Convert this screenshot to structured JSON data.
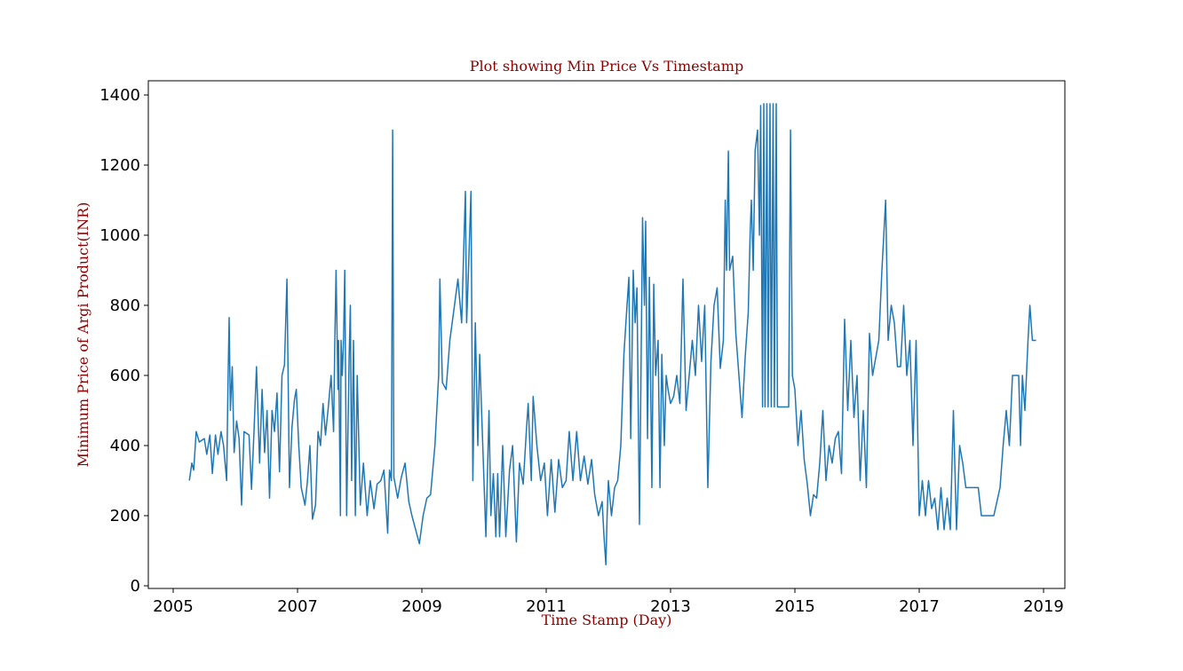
{
  "chart_data": {
    "type": "line",
    "title": "Plot showing Min Price Vs Timestamp",
    "x_label": "Time Stamp (Day)",
    "y_label": "Minimum Price of Argi Product(INR)",
    "xlim": [
      2004.6,
      2019.343
    ],
    "ylim": [
      -7.6,
      1440.5
    ],
    "xticks": [
      2005,
      2007,
      2009,
      2011,
      2013,
      2015,
      2017,
      2019
    ],
    "yticks": [
      0,
      200,
      400,
      600,
      800,
      1000,
      1200,
      1400
    ],
    "grid": false,
    "x": [
      2005.26,
      2005.3,
      2005.33,
      2005.37,
      2005.42,
      2005.5,
      2005.54,
      2005.59,
      2005.63,
      2005.68,
      2005.72,
      2005.77,
      2005.81,
      2005.86,
      2005.88,
      2005.9,
      2005.92,
      2005.95,
      2005.98,
      2006.02,
      2006.06,
      2006.1,
      2006.14,
      2006.22,
      2006.26,
      2006.3,
      2006.34,
      2006.39,
      2006.43,
      2006.47,
      2006.51,
      2006.55,
      2006.59,
      2006.63,
      2006.67,
      2006.71,
      2006.75,
      2006.79,
      2006.83,
      2006.87,
      2006.91,
      2006.95,
      2006.98,
      2007.02,
      2007.06,
      2007.12,
      2007.16,
      2007.2,
      2007.24,
      2007.29,
      2007.33,
      2007.37,
      2007.41,
      2007.45,
      2007.49,
      2007.54,
      2007.58,
      2007.6,
      2007.62,
      2007.65,
      2007.66,
      2007.69,
      2007.7,
      2007.72,
      2007.74,
      2007.76,
      2007.79,
      2007.83,
      2007.85,
      2007.87,
      2007.9,
      2007.93,
      2007.96,
      2008.01,
      2008.06,
      2008.12,
      2008.17,
      2008.23,
      2008.28,
      2008.34,
      2008.39,
      2008.45,
      2008.48,
      2008.51,
      2008.53,
      2008.55,
      2008.61,
      2008.67,
      2008.73,
      2008.79,
      2008.84,
      2008.9,
      2008.96,
      2009.02,
      2009.08,
      2009.14,
      2009.21,
      2009.27,
      2009.29,
      2009.33,
      2009.39,
      2009.45,
      2009.51,
      2009.58,
      2009.64,
      2009.7,
      2009.72,
      2009.75,
      2009.79,
      2009.82,
      2009.86,
      2009.9,
      2009.93,
      2009.97,
      2010.03,
      2010.08,
      2010.11,
      2010.15,
      2010.19,
      2010.22,
      2010.25,
      2010.3,
      2010.35,
      2010.41,
      2010.46,
      2010.52,
      2010.57,
      2010.63,
      2010.68,
      2010.71,
      2010.76,
      2010.79,
      2010.85,
      2010.91,
      2010.97,
      2011.02,
      2011.08,
      2011.14,
      2011.2,
      2011.26,
      2011.32,
      2011.37,
      2011.43,
      2011.49,
      2011.55,
      2011.61,
      2011.67,
      2011.73,
      2011.78,
      2011.84,
      2011.9,
      2011.93,
      2011.96,
      2011.98,
      2012.0,
      2012.05,
      2012.1,
      2012.15,
      2012.2,
      2012.25,
      2012.3,
      2012.33,
      2012.36,
      2012.4,
      2012.43,
      2012.46,
      2012.5,
      2012.55,
      2012.58,
      2012.6,
      2012.63,
      2012.66,
      2012.7,
      2012.73,
      2012.76,
      2012.8,
      2012.83,
      2012.86,
      2012.9,
      2012.93,
      2012.96,
      2013.0,
      2013.05,
      2013.1,
      2013.15,
      2013.2,
      2013.25,
      2013.3,
      2013.35,
      2013.4,
      2013.45,
      2013.5,
      2013.55,
      2013.6,
      2013.65,
      2013.7,
      2013.75,
      2013.8,
      2013.85,
      2013.88,
      2013.9,
      2013.93,
      2013.95,
      2014.0,
      2014.05,
      2014.1,
      2014.15,
      2014.2,
      2014.25,
      2014.28,
      2014.3,
      2014.33,
      2014.36,
      2014.4,
      2014.43,
      2014.45,
      2014.48,
      2014.5,
      2014.52,
      2014.55,
      2014.57,
      2014.6,
      2014.62,
      2014.65,
      2014.67,
      2014.7,
      2014.72,
      2014.8,
      2014.9,
      2014.93,
      2014.96,
      2015.0,
      2015.05,
      2015.1,
      2015.15,
      2015.2,
      2015.25,
      2015.3,
      2015.35,
      2015.4,
      2015.45,
      2015.5,
      2015.55,
      2015.6,
      2015.65,
      2015.7,
      2015.75,
      2015.8,
      2015.85,
      2015.9,
      2015.95,
      2016.0,
      2016.05,
      2016.1,
      2016.15,
      2016.2,
      2016.25,
      2016.3,
      2016.35,
      2016.4,
      2016.43,
      2016.46,
      2016.5,
      2016.55,
      2016.6,
      2016.65,
      2016.7,
      2016.75,
      2016.8,
      2016.85,
      2016.9,
      2016.95,
      2017.0,
      2017.05,
      2017.1,
      2017.15,
      2017.2,
      2017.25,
      2017.3,
      2017.35,
      2017.4,
      2017.45,
      2017.5,
      2017.55,
      2017.6,
      2017.65,
      2017.7,
      2017.75,
      2017.8,
      2017.95,
      2018.0,
      2018.2,
      2018.25,
      2018.3,
      2018.35,
      2018.4,
      2018.45,
      2018.5,
      2018.6,
      2018.63,
      2018.66,
      2018.7,
      2018.75,
      2018.78,
      2018.82,
      2018.88
    ],
    "series": [
      {
        "color": "#1f77b4",
        "values": [
          300,
          350,
          330,
          440,
          410,
          420,
          375,
          430,
          320,
          430,
          375,
          440,
          400,
          300,
          560,
          765,
          500,
          625,
          380,
          470,
          420,
          230,
          440,
          430,
          275,
          440,
          625,
          350,
          560,
          380,
          500,
          250,
          500,
          440,
          550,
          325,
          600,
          630,
          875,
          280,
          450,
          530,
          560,
          400,
          280,
          230,
          300,
          400,
          190,
          230,
          440,
          400,
          520,
          430,
          500,
          600,
          440,
          700,
          900,
          560,
          700,
          200,
          700,
          600,
          700,
          900,
          200,
          650,
          800,
          300,
          700,
          200,
          600,
          230,
          350,
          200,
          300,
          220,
          290,
          300,
          330,
          150,
          330,
          300,
          1300,
          310,
          250,
          310,
          350,
          240,
          200,
          160,
          120,
          200,
          250,
          260,
          400,
          600,
          875,
          580,
          560,
          700,
          780,
          875,
          750,
          1125,
          750,
          900,
          1125,
          300,
          750,
          400,
          660,
          450,
          140,
          500,
          200,
          320,
          140,
          320,
          140,
          400,
          140,
          330,
          400,
          125,
          350,
          290,
          440,
          520,
          300,
          540,
          400,
          300,
          350,
          200,
          360,
          210,
          360,
          280,
          300,
          440,
          300,
          440,
          300,
          370,
          290,
          360,
          260,
          200,
          240,
          140,
          60,
          200,
          300,
          200,
          280,
          300,
          400,
          660,
          800,
          880,
          420,
          900,
          750,
          850,
          175,
          1050,
          800,
          1040,
          420,
          880,
          280,
          860,
          600,
          700,
          280,
          660,
          400,
          600,
          560,
          520,
          540,
          600,
          520,
          875,
          500,
          600,
          700,
          600,
          800,
          640,
          800,
          280,
          640,
          800,
          850,
          620,
          700,
          1100,
          900,
          1240,
          900,
          940,
          720,
          600,
          480,
          650,
          780,
          1000,
          1100,
          900,
          1240,
          1300,
          1000,
          1370,
          510,
          1375,
          510,
          1375,
          510,
          1375,
          510,
          1375,
          510,
          1375,
          510,
          510,
          510,
          1300,
          600,
          560,
          400,
          500,
          360,
          290,
          200,
          260,
          250,
          350,
          500,
          300,
          400,
          350,
          420,
          440,
          320,
          760,
          500,
          700,
          480,
          600,
          300,
          500,
          280,
          720,
          600,
          650,
          700,
          900,
          1000,
          1100,
          700,
          800,
          750,
          625,
          625,
          800,
          600,
          700,
          400,
          700,
          200,
          300,
          200,
          300,
          220,
          250,
          160,
          280,
          160,
          250,
          160,
          500,
          160,
          400,
          350,
          280,
          280,
          280,
          200,
          200,
          240,
          280,
          400,
          500,
          400,
          600,
          600,
          400,
          600,
          500,
          700,
          800,
          700,
          700
        ]
      }
    ]
  }
}
